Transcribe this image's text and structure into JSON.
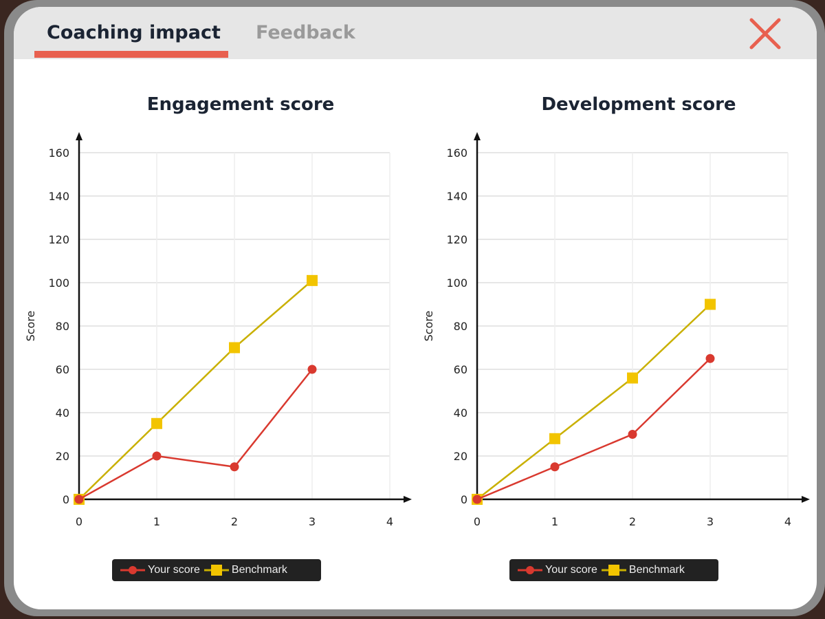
{
  "tabs": [
    {
      "label": "Coaching impact",
      "active": true
    },
    {
      "label": "Feedback",
      "active": false
    }
  ],
  "close_icon": "close-x-icon",
  "colors": {
    "accent": "#e8604f",
    "your_score": "#d9392f",
    "benchmark": "#f2c400",
    "benchmark_line": "#c9b000"
  },
  "chart_data": [
    {
      "type": "line",
      "title": "Engagement score",
      "xlabel": "",
      "ylabel": "Score",
      "xlim": [
        0,
        4
      ],
      "ylim": [
        0,
        160
      ],
      "x_ticks": [
        "0",
        "1",
        "2",
        "3",
        "4"
      ],
      "y_ticks": [
        "0",
        "20",
        "40",
        "60",
        "80",
        "100",
        "120",
        "140",
        "160"
      ],
      "x": [
        0,
        1,
        2,
        3
      ],
      "series": [
        {
          "name": "Your score",
          "values": [
            0,
            20,
            15,
            60
          ]
        },
        {
          "name": "Benchmark",
          "values": [
            0,
            35,
            70,
            101
          ]
        }
      ],
      "legend": "bottom-center",
      "grid": true
    },
    {
      "type": "line",
      "title": "Development score",
      "xlabel": "",
      "ylabel": "Score",
      "xlim": [
        0,
        4
      ],
      "ylim": [
        0,
        160
      ],
      "x_ticks": [
        "0",
        "1",
        "2",
        "3",
        "4"
      ],
      "y_ticks": [
        "0",
        "20",
        "40",
        "60",
        "80",
        "100",
        "120",
        "140",
        "160"
      ],
      "x": [
        0,
        1,
        2,
        3
      ],
      "series": [
        {
          "name": "Your score",
          "values": [
            0,
            15,
            30,
            65
          ]
        },
        {
          "name": "Benchmark",
          "values": [
            0,
            28,
            56,
            90
          ]
        }
      ],
      "legend": "bottom-center",
      "grid": true
    }
  ]
}
